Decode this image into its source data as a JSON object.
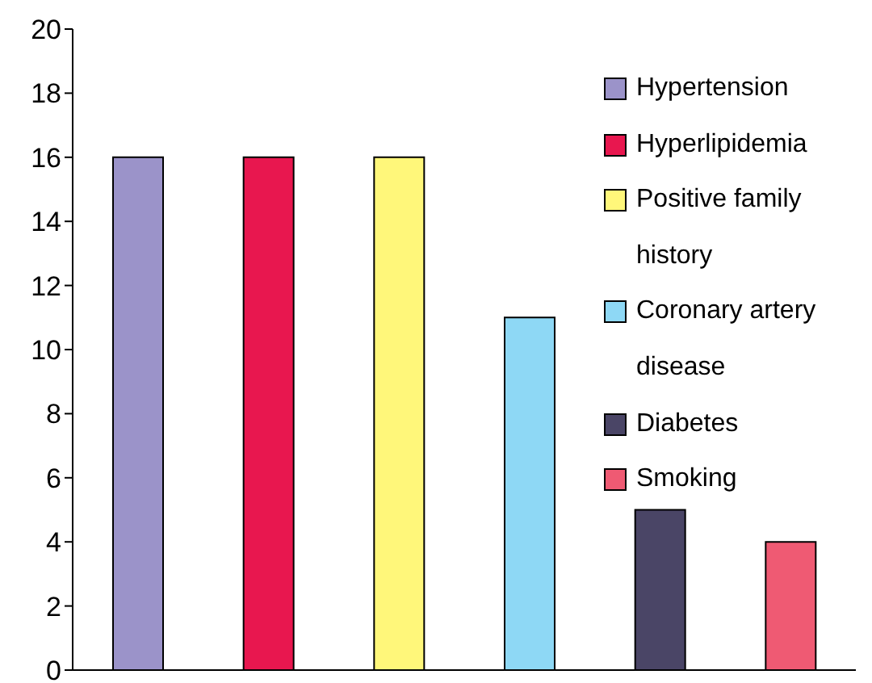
{
  "chart_data": {
    "type": "bar",
    "categories": [
      null,
      null,
      null,
      null,
      null,
      null
    ],
    "series": [
      {
        "name": "Hypertension",
        "color": "#9b93c9",
        "values": [
          16,
          null,
          null,
          null,
          null,
          null
        ]
      },
      {
        "name": "Hyperlipidemia",
        "color": "#e8174f",
        "values": [
          null,
          16,
          null,
          null,
          null,
          null
        ]
      },
      {
        "name": "Positive family history",
        "color": "#fff77a",
        "values": [
          null,
          null,
          16,
          null,
          null,
          null
        ]
      },
      {
        "name": "Coronary artery disease",
        "color": "#8ed8f5",
        "values": [
          null,
          null,
          null,
          11,
          null,
          null
        ]
      },
      {
        "name": "Diabetes",
        "color": "#4a4566",
        "values": [
          null,
          null,
          null,
          null,
          5,
          null
        ]
      },
      {
        "name": "Smoking",
        "color": "#ef5a73",
        "values": [
          null,
          null,
          null,
          null,
          null,
          4
        ]
      }
    ],
    "ylim": [
      0,
      20
    ],
    "yticks": [
      0,
      2,
      4,
      6,
      8,
      10,
      12,
      14,
      16,
      18,
      20
    ],
    "grid": false,
    "legend": "top right"
  }
}
